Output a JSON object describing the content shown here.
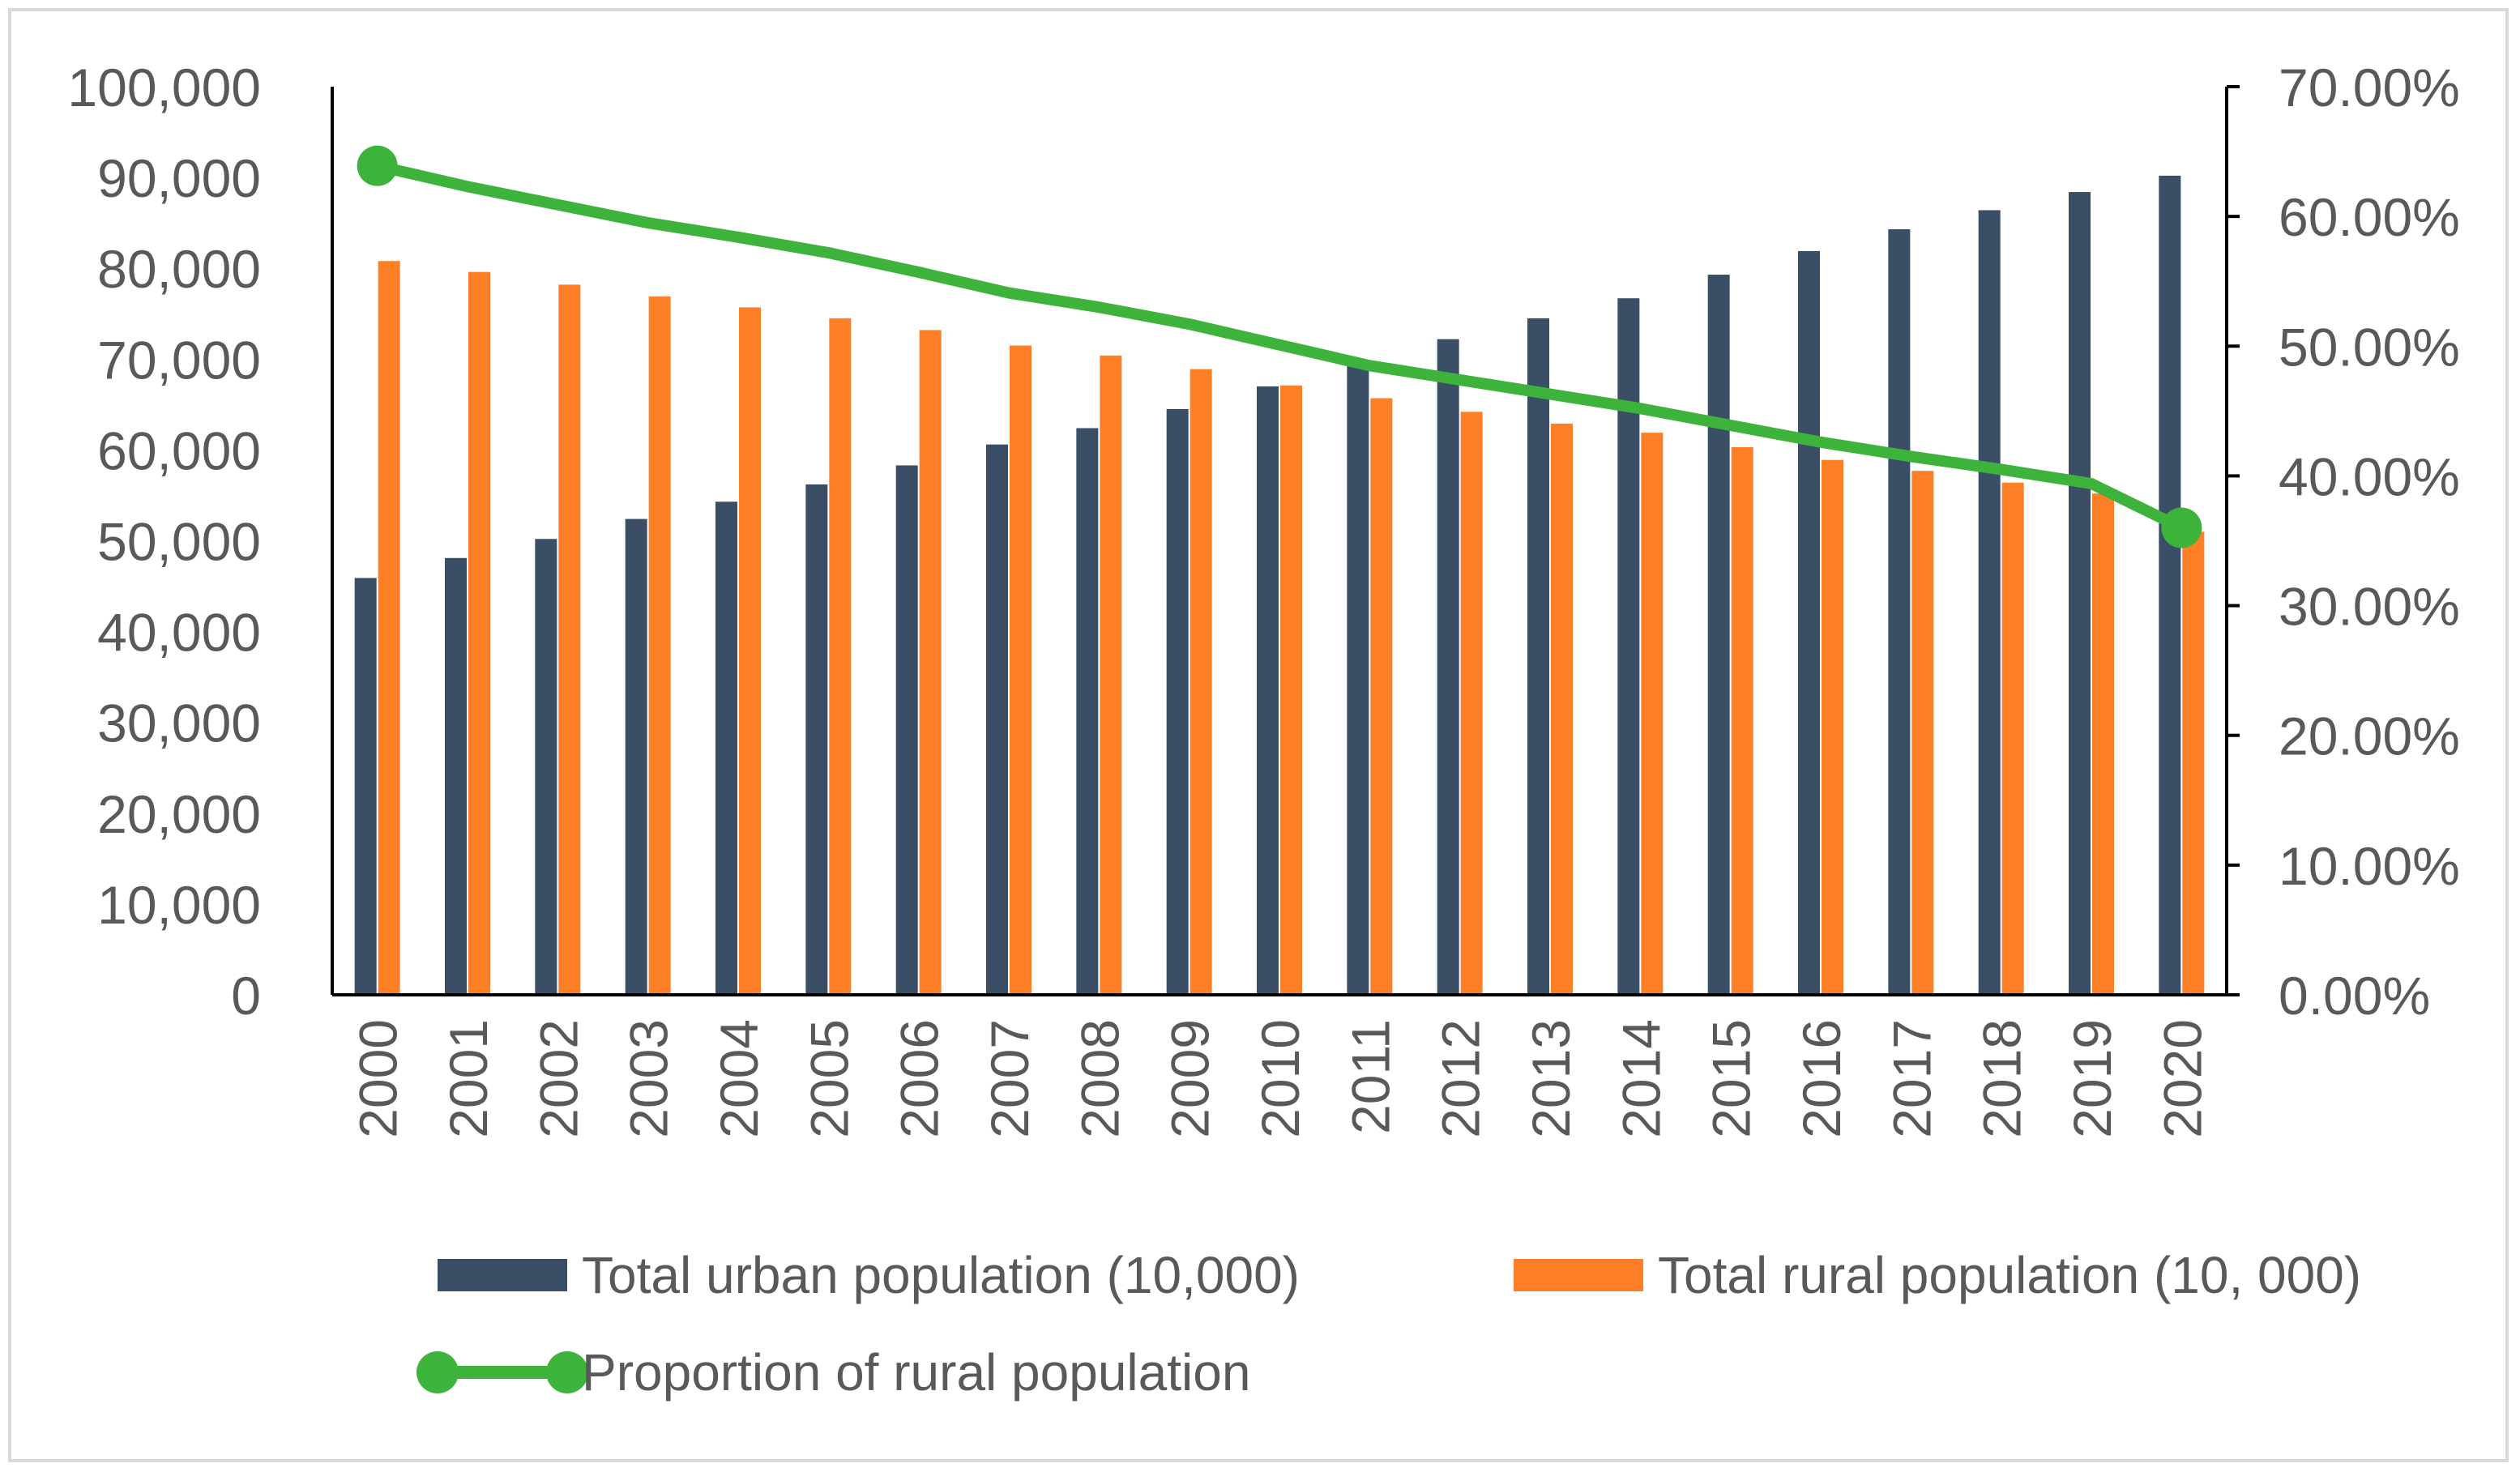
{
  "chart_data": {
    "type": "bar+line",
    "categories": [
      "2000",
      "2001",
      "2002",
      "2003",
      "2004",
      "2005",
      "2006",
      "2007",
      "2008",
      "2009",
      "2010",
      "2011",
      "2012",
      "2013",
      "2014",
      "2015",
      "2016",
      "2017",
      "2018",
      "2019",
      "2020"
    ],
    "series": [
      {
        "name": "Total urban population (10,000)",
        "type": "bar",
        "axis": "left",
        "color": "#3a4f66",
        "values": [
          45900,
          48100,
          50200,
          52400,
          54300,
          56200,
          58300,
          60600,
          62400,
          64500,
          67000,
          69900,
          72200,
          74500,
          76700,
          79300,
          81900,
          84300,
          86400,
          88400,
          90200
        ]
      },
      {
        "name": "Total rural population (10, 000)",
        "type": "bar",
        "axis": "left",
        "color": "#ff7f27",
        "values": [
          80800,
          79600,
          78200,
          76900,
          75700,
          74500,
          73200,
          71500,
          70400,
          68900,
          67100,
          65700,
          64200,
          62900,
          61900,
          60300,
          58900,
          57700,
          56400,
          55200,
          51000
        ]
      },
      {
        "name": "Proportion of rural population",
        "type": "line",
        "axis": "right",
        "color": "#3db33b",
        "values": [
          0.639,
          0.623,
          0.609,
          0.595,
          0.584,
          0.572,
          0.557,
          0.541,
          0.53,
          0.517,
          0.501,
          0.485,
          0.474,
          0.463,
          0.452,
          0.439,
          0.426,
          0.415,
          0.405,
          0.394,
          0.36
        ]
      }
    ],
    "left_axis": {
      "min": 0,
      "max": 100000,
      "ticks": [
        "0",
        "10,000",
        "20,000",
        "30,000",
        "40,000",
        "50,000",
        "60,000",
        "70,000",
        "80,000",
        "90,000",
        "100,000"
      ]
    },
    "right_axis": {
      "min": 0,
      "max": 0.7,
      "ticks": [
        "0.00%",
        "10.00%",
        "20.00%",
        "30.00%",
        "40.00%",
        "50.00%",
        "60.00%",
        "70.00%"
      ]
    },
    "title": "",
    "xlabel": "",
    "ylabel": "",
    "legend_position": "bottom",
    "marker_points": "first-and-last"
  }
}
